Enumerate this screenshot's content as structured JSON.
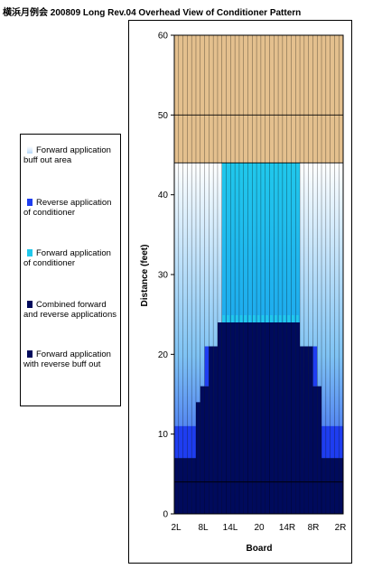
{
  "chart_data": {
    "type": "area",
    "title": "横浜月例会 200809 Long Rev.04 Overhead View of Conditioner Pattern",
    "xlabel": "Board",
    "ylabel": "Distance (feet)",
    "ylim": [
      0,
      60
    ],
    "yticks": [
      0,
      10,
      20,
      30,
      40,
      50,
      60
    ],
    "xticks": [
      "2L",
      "8L",
      "14L",
      "20",
      "14R",
      "8R",
      "2R"
    ],
    "x_board_range": [
      1,
      39
    ],
    "grid": true,
    "legend_position": "left",
    "series": [
      {
        "name": "Forward application buff out area",
        "color": "#eaf4fc"
      },
      {
        "name": "Reverse application of conditioner",
        "color": "#1e3df0"
      },
      {
        "name": "Forward application of conditioner",
        "color": "#20c8ec"
      },
      {
        "name": "Combined forward and reverse applications",
        "color": "#000a5c"
      },
      {
        "name": "Forward application with reverse buff out",
        "color": "#000a5c"
      }
    ],
    "dry_area": {
      "from_feet": 44,
      "to_feet": 60,
      "color": "#e4c08e"
    },
    "forward_application_length_by_board": [
      44,
      44,
      44,
      44,
      44,
      44,
      44,
      44,
      44,
      44,
      44,
      44,
      44,
      44,
      44,
      44,
      44,
      44,
      44,
      44,
      44,
      44,
      44,
      44,
      44,
      44,
      44,
      44,
      44,
      44,
      44,
      44,
      44,
      44,
      44,
      44,
      44,
      44,
      44
    ],
    "reverse_application_length_by_board": [
      11,
      11,
      11,
      11,
      11,
      11,
      11,
      21,
      21,
      21,
      21,
      44,
      44,
      44,
      44,
      44,
      44,
      44,
      44,
      44,
      44,
      44,
      44,
      44,
      44,
      44,
      44,
      44,
      44,
      21,
      21,
      21,
      21,
      11,
      11,
      11,
      11,
      11,
      11
    ],
    "combined_length_by_board": [
      7,
      7,
      7,
      7,
      7,
      14,
      16,
      16,
      21,
      21,
      24,
      24,
      24,
      24,
      24,
      24,
      24,
      24,
      24,
      24,
      24,
      24,
      24,
      24,
      24,
      24,
      24,
      24,
      24,
      21,
      21,
      21,
      16,
      16,
      7,
      7,
      7,
      7,
      7
    ],
    "forward_buff_start_by_board": [
      11,
      11,
      11,
      11,
      11,
      11,
      11,
      21,
      21,
      21,
      21,
      44,
      44,
      44,
      44,
      44,
      44,
      44,
      44,
      44,
      44,
      44,
      44,
      44,
      44,
      44,
      44,
      44,
      44,
      21,
      21,
      21,
      21,
      11,
      11,
      11,
      11,
      11,
      11
    ]
  }
}
